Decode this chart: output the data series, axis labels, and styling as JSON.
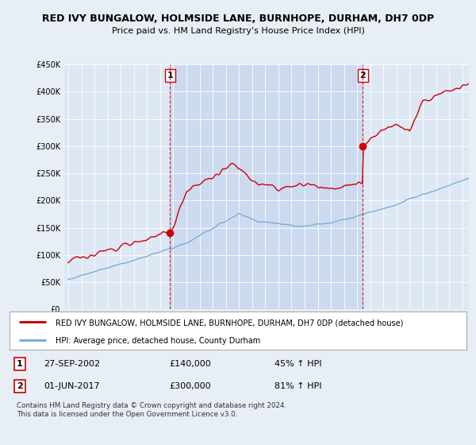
{
  "title": "RED IVY BUNGALOW, HOLMSIDE LANE, BURNHOPE, DURHAM, DH7 0DP",
  "subtitle": "Price paid vs. HM Land Registry's House Price Index (HPI)",
  "legend_line1": "RED IVY BUNGALOW, HOLMSIDE LANE, BURNHOPE, DURHAM, DH7 0DP (detached house)",
  "legend_line2": "HPI: Average price, detached house, County Durham",
  "annotation1_label": "1",
  "annotation1_date": "27-SEP-2002",
  "annotation1_price": "£140,000",
  "annotation1_hpi": "45% ↑ HPI",
  "annotation2_label": "2",
  "annotation2_date": "01-JUN-2017",
  "annotation2_price": "£300,000",
  "annotation2_hpi": "81% ↑ HPI",
  "footnote": "Contains HM Land Registry data © Crown copyright and database right 2024.\nThis data is licensed under the Open Government Licence v3.0.",
  "ylim": [
    0,
    450000
  ],
  "yticks": [
    0,
    50000,
    100000,
    150000,
    200000,
    250000,
    300000,
    350000,
    400000,
    450000
  ],
  "bg_color": "#e8eef5",
  "plot_bg_color": "#dde8f4",
  "shade_bg_color": "#ccdaf0",
  "red_color": "#cc0000",
  "blue_color": "#7bafd4",
  "marker1_x": 2002.75,
  "marker1_y": 140000,
  "marker2_x": 2017.42,
  "marker2_y": 300000,
  "vline1_x": 2002.75,
  "vline2_x": 2017.42,
  "xmin": 1995,
  "xmax": 2025
}
